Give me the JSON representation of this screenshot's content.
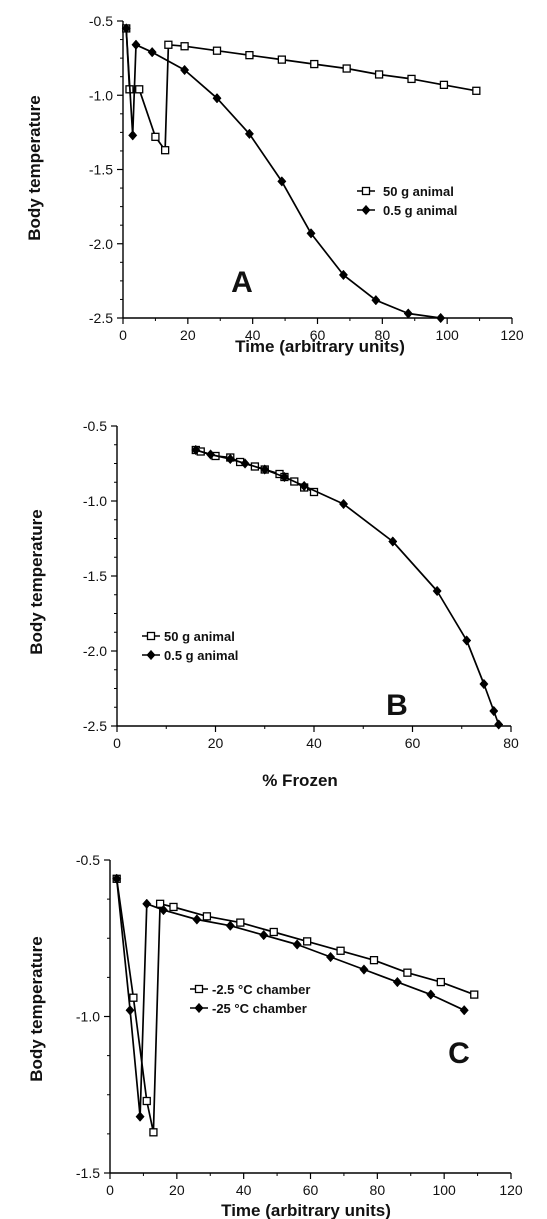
{
  "chart_data": [
    {
      "type": "line",
      "panel_label": "A",
      "xlabel": "Time (arbitrary units)",
      "ylabel": "Body temperature",
      "xlim": [
        0,
        120
      ],
      "ylim": [
        -2.5,
        -0.5
      ],
      "xticks": [
        0,
        20,
        40,
        60,
        80,
        100,
        120
      ],
      "yticks": [
        -2.5,
        -2.0,
        -1.5,
        -1.0,
        -0.5
      ],
      "ytick_labels": [
        "-2.5",
        "-2.0",
        "-1.5",
        "-1.0",
        "-0.5"
      ],
      "legend_position": "right",
      "series": [
        {
          "name": "50 g animal",
          "marker": "open-square",
          "x": [
            1,
            2,
            5,
            10,
            13,
            14,
            19,
            29,
            39,
            49,
            59,
            69,
            79,
            89,
            99,
            109
          ],
          "y": [
            -0.55,
            -0.96,
            -0.96,
            -1.28,
            -1.37,
            -0.66,
            -0.67,
            -0.7,
            -0.73,
            -0.76,
            -0.79,
            -0.82,
            -0.86,
            -0.89,
            -0.93,
            -0.97
          ]
        },
        {
          "name": "0.5 g animal",
          "marker": "filled-diamond",
          "x": [
            1,
            3,
            4,
            9,
            19,
            29,
            39,
            49,
            58,
            68,
            78,
            88,
            98
          ],
          "y": [
            -0.55,
            -1.27,
            -0.66,
            -0.71,
            -0.83,
            -1.02,
            -1.26,
            -1.58,
            -1.93,
            -2.21,
            -2.38,
            -2.47,
            -2.5
          ]
        }
      ]
    },
    {
      "type": "line",
      "panel_label": "B",
      "xlabel": "% Frozen",
      "ylabel": "Body temperature",
      "xlim": [
        0,
        80
      ],
      "ylim": [
        -2.5,
        -0.5
      ],
      "xticks": [
        0,
        20,
        40,
        60,
        80
      ],
      "yticks": [
        -2.5,
        -2.0,
        -1.5,
        -1.0,
        -0.5
      ],
      "ytick_labels": [
        "-2.5",
        "-2.0",
        "-1.5",
        "-1.0",
        "-0.5"
      ],
      "legend_position": "left",
      "series": [
        {
          "name": "50 g animal",
          "marker": "open-square",
          "x": [
            16,
            17,
            20,
            23,
            25,
            28,
            30,
            33,
            34,
            36,
            38,
            40
          ],
          "y": [
            -0.66,
            -0.67,
            -0.7,
            -0.71,
            -0.74,
            -0.77,
            -0.79,
            -0.82,
            -0.84,
            -0.87,
            -0.91,
            -0.94
          ]
        },
        {
          "name": "0.5 g animal",
          "marker": "filled-diamond",
          "x": [
            16,
            19,
            23,
            26,
            30,
            34,
            38,
            46,
            56,
            65,
            71,
            74.5,
            76.5,
            77.5
          ],
          "y": [
            -0.66,
            -0.69,
            -0.72,
            -0.75,
            -0.79,
            -0.84,
            -0.9,
            -1.02,
            -1.27,
            -1.6,
            -1.93,
            -2.22,
            -2.4,
            -2.49
          ]
        }
      ]
    },
    {
      "type": "line",
      "panel_label": "C",
      "xlabel": "Time (arbitrary units)",
      "ylabel": "Body temperature",
      "xlim": [
        0,
        120
      ],
      "ylim": [
        -1.5,
        -0.5
      ],
      "xticks": [
        0,
        20,
        40,
        60,
        80,
        100,
        120
      ],
      "yticks": [
        -1.5,
        -1.0,
        -0.5
      ],
      "ytick_labels": [
        "-1.5",
        "-1.0",
        "-0.5"
      ],
      "legend_position": "center-left",
      "series": [
        {
          "name": "-2.5 °C chamber",
          "marker": "open-square",
          "x": [
            2,
            7,
            11,
            13,
            15,
            19,
            29,
            39,
            49,
            59,
            69,
            79,
            89,
            99,
            109
          ],
          "y": [
            -0.56,
            -0.94,
            -1.27,
            -1.37,
            -0.64,
            -0.65,
            -0.68,
            -0.7,
            -0.73,
            -0.76,
            -0.79,
            -0.82,
            -0.86,
            -0.89,
            -0.93
          ]
        },
        {
          "name": "-25 °C chamber",
          "marker": "filled-diamond",
          "x": [
            2,
            6,
            9,
            11,
            16,
            26,
            36,
            46,
            56,
            66,
            76,
            86,
            96,
            106
          ],
          "y": [
            -0.56,
            -0.98,
            -1.32,
            -0.64,
            -0.66,
            -0.69,
            -0.71,
            -0.74,
            -0.77,
            -0.81,
            -0.85,
            -0.89,
            -0.93,
            -0.98
          ]
        }
      ]
    }
  ]
}
